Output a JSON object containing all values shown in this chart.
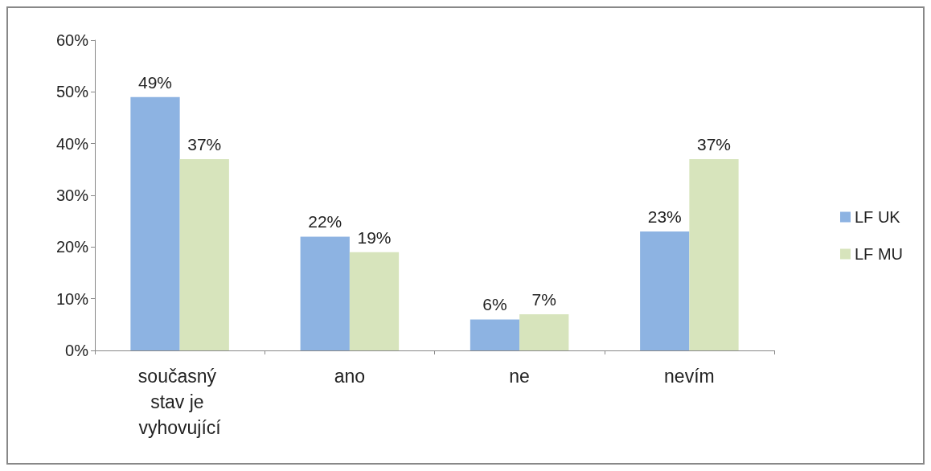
{
  "chart_data": {
    "type": "bar",
    "categories": [
      "současný stav je vyhovující",
      "ano",
      "ne",
      "nevím"
    ],
    "series": [
      {
        "name": "LF UK",
        "color": "#8db3e2",
        "values": [
          49,
          22,
          6,
          23
        ],
        "value_labels": [
          "49%",
          "22%",
          "6%",
          "23%"
        ]
      },
      {
        "name": "LF MU",
        "color": "#d7e4bc",
        "values": [
          37,
          19,
          7,
          37
        ],
        "value_labels": [
          "37%",
          "19%",
          "7%",
          "37%"
        ]
      }
    ],
    "ylim": [
      0,
      60
    ],
    "yticks": [
      {
        "value": 0,
        "label": "0%"
      },
      {
        "value": 10,
        "label": "10%"
      },
      {
        "value": 20,
        "label": "20%"
      },
      {
        "value": 30,
        "label": "30%"
      },
      {
        "value": 40,
        "label": "40%"
      },
      {
        "value": 50,
        "label": "50%"
      },
      {
        "value": 60,
        "label": "60%"
      }
    ],
    "grid": false,
    "legend": "right"
  }
}
